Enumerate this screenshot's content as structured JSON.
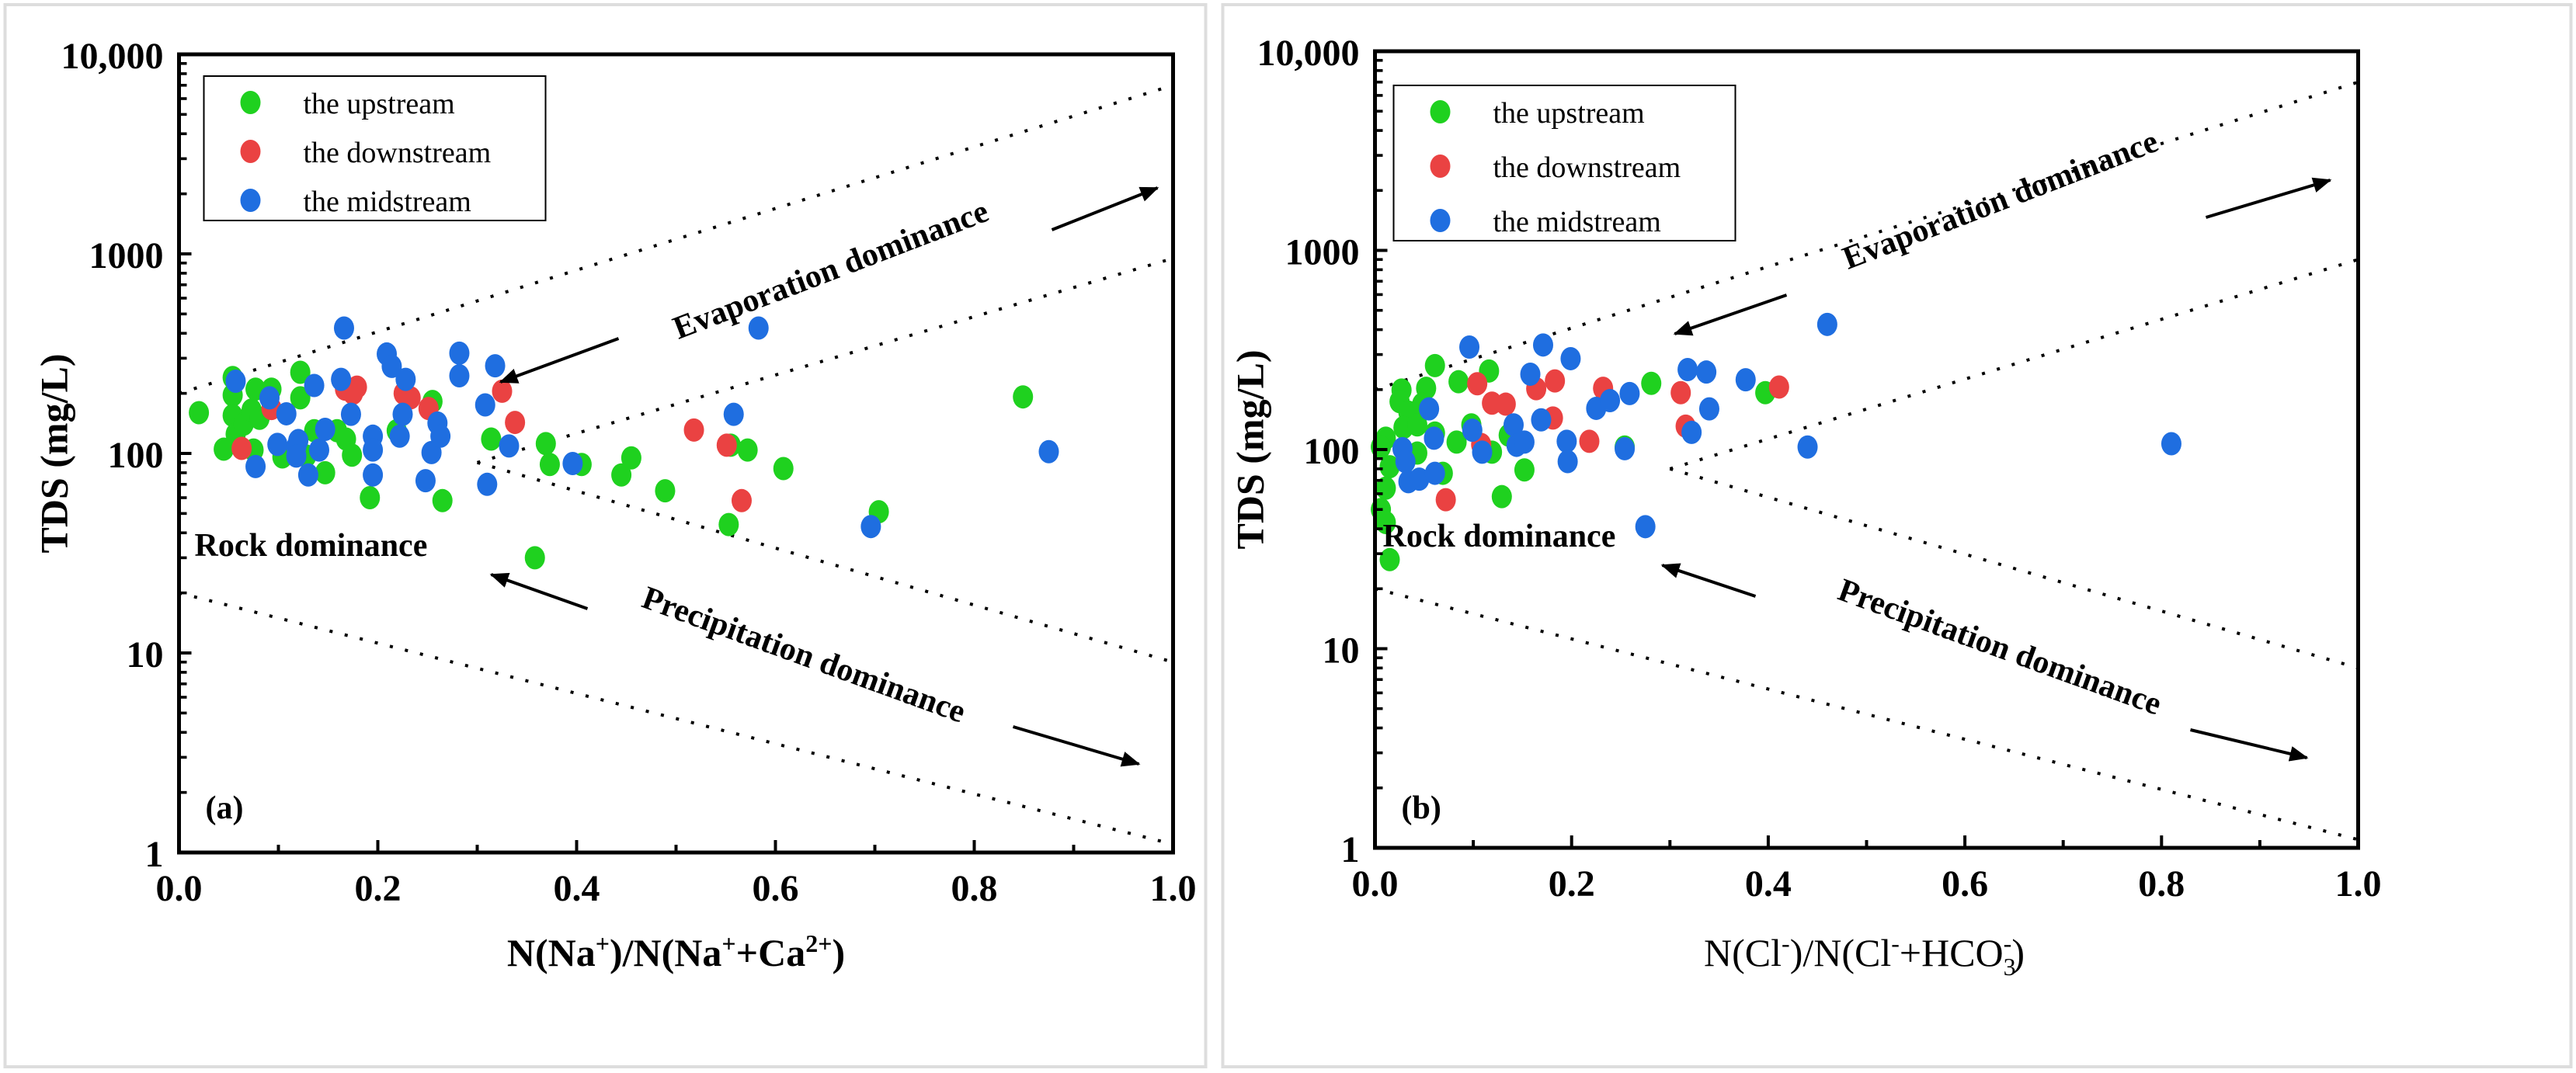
{
  "colors": {
    "upstream": "#1fd11f",
    "downstream": "#ea4242",
    "midstream": "#1f6ee0"
  },
  "chart_data": [
    {
      "type": "scatter",
      "panel_label": "(a)",
      "xlabel": {
        "pre": "N(Na",
        "sup1": "+",
        "mid": ")/N(Na",
        "sup2": "+",
        "mid2": "+Ca",
        "sup3": "2+",
        "post": ")"
      },
      "ylabel": "TDS (mg/L)",
      "xlim": [
        0,
        1.0
      ],
      "ylim": [
        1,
        10000
      ],
      "yscale": "log",
      "xticks": [
        "0.0",
        "0.2",
        "0.4",
        "0.6",
        "0.8",
        "1.0"
      ],
      "yticks": [
        "1",
        "10",
        "100",
        "1000",
        "10,000"
      ],
      "legend": {
        "position": "top-left",
        "entries": [
          "the upstream",
          "the downstream",
          "the midstream"
        ]
      },
      "annotations": {
        "evaporation": "Evaporation dominance",
        "rock": "Rock dominance",
        "precipitation": "Precipitation dominance"
      },
      "boundaries": [
        [
          [
            0,
            200
          ],
          [
            1.0,
            7000
          ]
        ],
        [
          [
            0.3,
            90
          ],
          [
            1.0,
            950
          ]
        ],
        [
          [
            0.3,
            90
          ],
          [
            1.0,
            9
          ]
        ],
        [
          [
            0,
            20
          ],
          [
            1.0,
            1.1
          ]
        ]
      ],
      "series": [
        {
          "name": "the upstream",
          "points": [
            [
              0.02,
              160
            ],
            [
              0.054,
              240
            ],
            [
              0.054,
              196
            ],
            [
              0.054,
              155
            ],
            [
              0.045,
              105
            ],
            [
              0.057,
              125
            ],
            [
              0.065,
              140
            ],
            [
              0.073,
              165
            ],
            [
              0.077,
              210
            ],
            [
              0.081,
              150
            ],
            [
              0.093,
              210
            ],
            [
              0.075,
              104
            ],
            [
              0.104,
              96
            ],
            [
              0.122,
              255
            ],
            [
              0.122,
              190
            ],
            [
              0.128,
              97
            ],
            [
              0.136,
              130
            ],
            [
              0.147,
              80
            ],
            [
              0.159,
              130
            ],
            [
              0.168,
              118
            ],
            [
              0.174,
              98
            ],
            [
              0.192,
              60
            ],
            [
              0.219,
              130
            ],
            [
              0.255,
              182
            ],
            [
              0.265,
              58
            ],
            [
              0.314,
              118
            ],
            [
              0.358,
              30
            ],
            [
              0.369,
              112
            ],
            [
              0.373,
              88
            ],
            [
              0.405,
              88
            ],
            [
              0.445,
              78
            ],
            [
              0.455,
              95
            ],
            [
              0.489,
              65
            ],
            [
              0.553,
              44
            ],
            [
              0.555,
              110
            ],
            [
              0.572,
              104
            ],
            [
              0.608,
              84
            ],
            [
              0.704,
              51
            ],
            [
              0.849,
              192
            ]
          ]
        },
        {
          "name": "the downstream",
          "points": [
            [
              0.063,
              106
            ],
            [
              0.093,
              168
            ],
            [
              0.167,
              210
            ],
            [
              0.179,
              215
            ],
            [
              0.175,
              200
            ],
            [
              0.226,
              200
            ],
            [
              0.233,
              190
            ],
            [
              0.251,
              168
            ],
            [
              0.325,
              205
            ],
            [
              0.338,
              143
            ],
            [
              0.518,
              131
            ],
            [
              0.551,
              110
            ],
            [
              0.566,
              58
            ]
          ]
        },
        {
          "name": "the midstream",
          "points": [
            [
              0.057,
              230
            ],
            [
              0.091,
              190
            ],
            [
              0.108,
              158
            ],
            [
              0.099,
              111
            ],
            [
              0.077,
              86
            ],
            [
              0.118,
              108
            ],
            [
              0.12,
              116
            ],
            [
              0.118,
              97
            ],
            [
              0.13,
              78
            ],
            [
              0.136,
              219
            ],
            [
              0.141,
              104
            ],
            [
              0.147,
              132
            ],
            [
              0.166,
              425
            ],
            [
              0.163,
              235
            ],
            [
              0.173,
              157
            ],
            [
              0.195,
              122
            ],
            [
              0.195,
              104
            ],
            [
              0.195,
              78
            ],
            [
              0.209,
              315
            ],
            [
              0.214,
              273
            ],
            [
              0.228,
              235
            ],
            [
              0.225,
              157
            ],
            [
              0.222,
              122
            ],
            [
              0.248,
              73
            ],
            [
              0.254,
              101
            ],
            [
              0.26,
              142
            ],
            [
              0.263,
              122
            ],
            [
              0.282,
              318
            ],
            [
              0.282,
              245
            ],
            [
              0.308,
              175
            ],
            [
              0.318,
              275
            ],
            [
              0.332,
              109
            ],
            [
              0.31,
              70
            ],
            [
              0.396,
              89
            ],
            [
              0.558,
              157
            ],
            [
              0.583,
              425
            ],
            [
              0.696,
              43
            ],
            [
              0.875,
              102
            ]
          ]
        }
      ]
    },
    {
      "type": "scatter",
      "panel_label": "(b)",
      "xlabel": {
        "pre": "N(Cl",
        "sup1": "-",
        "mid": ")/N(Cl",
        "sup2": "-",
        "mid2": "+HCO",
        "sub": "3",
        "sup3": "-",
        "post": ")"
      },
      "ylabel": "TDS (mg/L)",
      "xlim": [
        0,
        1.0
      ],
      "ylim": [
        1,
        10000
      ],
      "yscale": "log",
      "xticks": [
        "0.0",
        "0.2",
        "0.4",
        "0.6",
        "0.8",
        "1.0"
      ],
      "yticks": [
        "1",
        "10",
        "100",
        "1000",
        "10,000"
      ],
      "legend": {
        "position": "top-left",
        "entries": [
          "the upstream",
          "the downstream",
          "the midstream"
        ]
      },
      "annotations": {
        "evaporation": "Evaporation dominance",
        "rock": "Rock dominance",
        "precipitation": "Precipitation dominance"
      },
      "boundaries": [
        [
          [
            0,
            200
          ],
          [
            1.0,
            7000
          ]
        ],
        [
          [
            0.3,
            80
          ],
          [
            1.0,
            900
          ]
        ],
        [
          [
            0.3,
            80
          ],
          [
            1.0,
            8
          ]
        ],
        [
          [
            0,
            20
          ],
          [
            1.0,
            1.1
          ]
        ]
      ],
      "series": [
        {
          "name": "the upstream",
          "points": [
            [
              0.061,
              264
            ],
            [
              0.085,
              219
            ],
            [
              0.116,
              248
            ],
            [
              0.281,
              215
            ],
            [
              0.397,
              193
            ],
            [
              0.027,
              199
            ],
            [
              0.052,
              203
            ],
            [
              0.025,
              174
            ],
            [
              0.034,
              154
            ],
            [
              0.048,
              169
            ],
            [
              0.029,
              129
            ],
            [
              0.043,
              133
            ],
            [
              0.011,
              114
            ],
            [
              0.006,
              103
            ],
            [
              0.015,
              82
            ],
            [
              0.011,
              64
            ],
            [
              0.006,
              50
            ],
            [
              0.011,
              43
            ],
            [
              0.015,
              28
            ],
            [
              0.043,
              96
            ],
            [
              0.061,
              121
            ],
            [
              0.069,
              76
            ],
            [
              0.083,
              109
            ],
            [
              0.098,
              133
            ],
            [
              0.119,
              97
            ],
            [
              0.136,
              118
            ],
            [
              0.152,
              79
            ],
            [
              0.129,
              58
            ],
            [
              0.254,
              103
            ]
          ]
        },
        {
          "name": "the downstream",
          "points": [
            [
              0.104,
              214
            ],
            [
              0.119,
              171
            ],
            [
              0.133,
              169
            ],
            [
              0.164,
              202
            ],
            [
              0.183,
              221
            ],
            [
              0.181,
              144
            ],
            [
              0.108,
              106
            ],
            [
              0.072,
              56
            ],
            [
              0.218,
              110
            ],
            [
              0.232,
              203
            ],
            [
              0.311,
              193
            ],
            [
              0.316,
              131
            ],
            [
              0.411,
              206
            ]
          ]
        },
        {
          "name": "the midstream",
          "points": [
            [
              0.096,
              327
            ],
            [
              0.171,
              335
            ],
            [
              0.199,
              286
            ],
            [
              0.158,
              239
            ],
            [
              0.055,
              160
            ],
            [
              0.06,
              114
            ],
            [
              0.099,
              125
            ],
            [
              0.109,
              97
            ],
            [
              0.141,
              133
            ],
            [
              0.144,
              105
            ],
            [
              0.152,
              109
            ],
            [
              0.169,
              141
            ],
            [
              0.195,
              110
            ],
            [
              0.196,
              87
            ],
            [
              0.225,
              161
            ],
            [
              0.239,
              176
            ],
            [
              0.259,
              191
            ],
            [
              0.254,
              101
            ],
            [
              0.275,
              41
            ],
            [
              0.318,
              252
            ],
            [
              0.337,
              245
            ],
            [
              0.322,
              122
            ],
            [
              0.34,
              160
            ],
            [
              0.377,
              224
            ],
            [
              0.028,
              101
            ],
            [
              0.031,
              87
            ],
            [
              0.034,
              69
            ],
            [
              0.045,
              71
            ],
            [
              0.061,
              76
            ],
            [
              0.44,
              103
            ],
            [
              0.46,
              425
            ],
            [
              0.81,
              107
            ]
          ]
        }
      ]
    }
  ]
}
